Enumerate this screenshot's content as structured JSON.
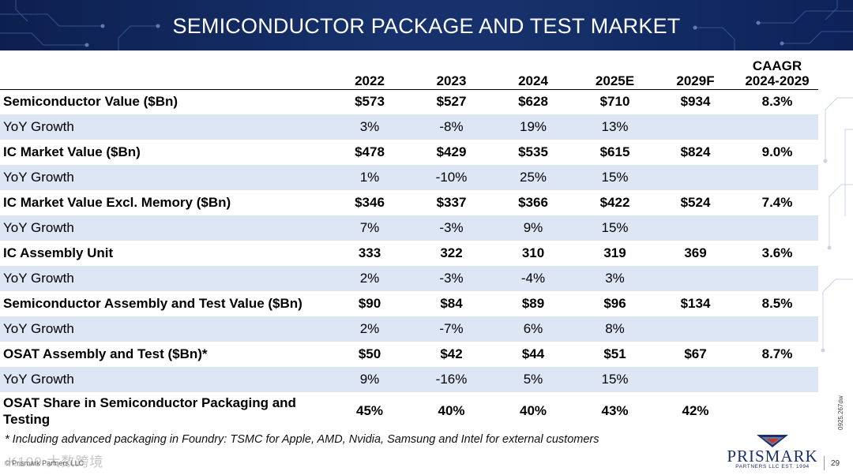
{
  "header": {
    "title": "SEMICONDUCTOR PACKAGE AND TEST MARKET"
  },
  "table": {
    "columns": [
      "2022",
      "2023",
      "2024",
      "2025E",
      "2029F"
    ],
    "caagr_header": {
      "line1": "CAAGR",
      "line2": "2024-2029"
    },
    "rows": [
      {
        "label": "Semiconductor Value ($Bn)",
        "values": [
          "$573",
          "$527",
          "$628",
          "$710",
          "$934"
        ],
        "caagr": "8.3%"
      },
      {
        "label": "YoY Growth",
        "values": [
          "3%",
          "-8%",
          "19%",
          "13%",
          ""
        ],
        "caagr": ""
      },
      {
        "label": "IC Market Value ($Bn)",
        "values": [
          "$478",
          "$429",
          "$535",
          "$615",
          "$824"
        ],
        "caagr": "9.0%"
      },
      {
        "label": "YoY Growth",
        "values": [
          "1%",
          "-10%",
          "25%",
          "15%",
          ""
        ],
        "caagr": ""
      },
      {
        "label": "IC Market Value Excl. Memory ($Bn)",
        "values": [
          "$346",
          "$337",
          "$366",
          "$422",
          "$524"
        ],
        "caagr": "7.4%"
      },
      {
        "label": "YoY Growth",
        "values": [
          "7%",
          "-3%",
          "9%",
          "15%",
          ""
        ],
        "caagr": ""
      },
      {
        "label": "IC Assembly Unit",
        "values": [
          "333",
          "322",
          "310",
          "319",
          "369"
        ],
        "caagr": "3.6%"
      },
      {
        "label": "YoY Growth",
        "values": [
          "2%",
          "-3%",
          "-4%",
          "3%",
          ""
        ],
        "caagr": ""
      },
      {
        "label": "Semiconductor Assembly and Test Value ($Bn)",
        "values": [
          "$90",
          "$84",
          "$89",
          "$96",
          "$134"
        ],
        "caagr": "8.5%"
      },
      {
        "label": "YoY Growth",
        "values": [
          "2%",
          "-7%",
          "6%",
          "8%",
          ""
        ],
        "caagr": ""
      },
      {
        "label": "OSAT Assembly and Test ($Bn)*",
        "values": [
          "$50",
          "$42",
          "$44",
          "$51",
          "$67"
        ],
        "caagr": "8.7%"
      },
      {
        "label": "YoY Growth",
        "values": [
          "9%",
          "-16%",
          "5%",
          "15%",
          ""
        ],
        "caagr": ""
      },
      {
        "label": "OSAT Share in Semiconductor Packaging and Testing",
        "values": [
          "45%",
          "40%",
          "40%",
          "43%",
          "42%"
        ],
        "caagr": ""
      }
    ]
  },
  "footnote": "* Including advanced packaging in Foundry: TSMC for Apple, AMD, Nvidia, Samsung and Intel for external customers",
  "footer": {
    "copyright": "© Prismark Partners LLC",
    "watermark": "K100 大数跨境",
    "doc_code": "0925.267dw",
    "logo_name": "PRISMARK",
    "logo_tagline": "PARTNERS LLC EST. 1994",
    "page_number": "29"
  },
  "colors": {
    "banner": "#16316b",
    "sub_row": "#dce6f5",
    "brand": "#1d2f6b"
  }
}
